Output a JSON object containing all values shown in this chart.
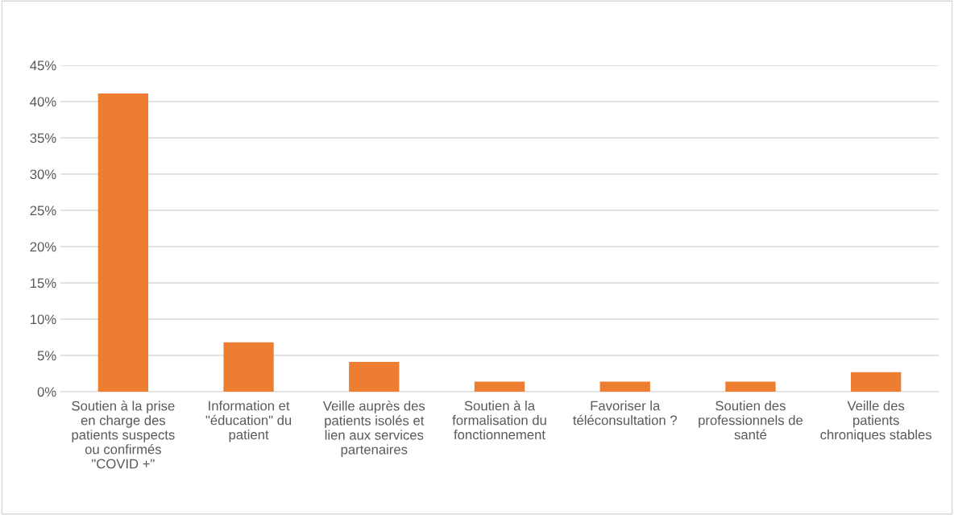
{
  "chart_data": {
    "type": "bar",
    "categories": [
      "Soutien à la prise en charge des patients suspects ou confirmés \"COVID +\"",
      "Information et \"éducation\" du patient",
      "Veille auprès des patients isolés et lien aux services partenaires",
      "Soutien à la formalisation du fonctionnement",
      "Favoriser la téléconsultation ?",
      "Soutien des professionnels de santé",
      "Veille des patients chroniques stables"
    ],
    "values": [
      41.1,
      6.8,
      4.1,
      1.4,
      1.4,
      1.4,
      2.7
    ],
    "color": "#ed7d31",
    "ylim": [
      0,
      45
    ],
    "yticks": [
      {
        "value": 0,
        "label": "0%"
      },
      {
        "value": 5,
        "label": "5%"
      },
      {
        "value": 10,
        "label": "10%"
      },
      {
        "value": 15,
        "label": "15%"
      },
      {
        "value": 20,
        "label": "20%"
      },
      {
        "value": 25,
        "label": "25%"
      },
      {
        "value": 30,
        "label": "30%"
      },
      {
        "value": 35,
        "label": "35%"
      },
      {
        "value": 40,
        "label": "40%"
      },
      {
        "value": 45,
        "label": "45%"
      }
    ],
    "grid": "y"
  }
}
